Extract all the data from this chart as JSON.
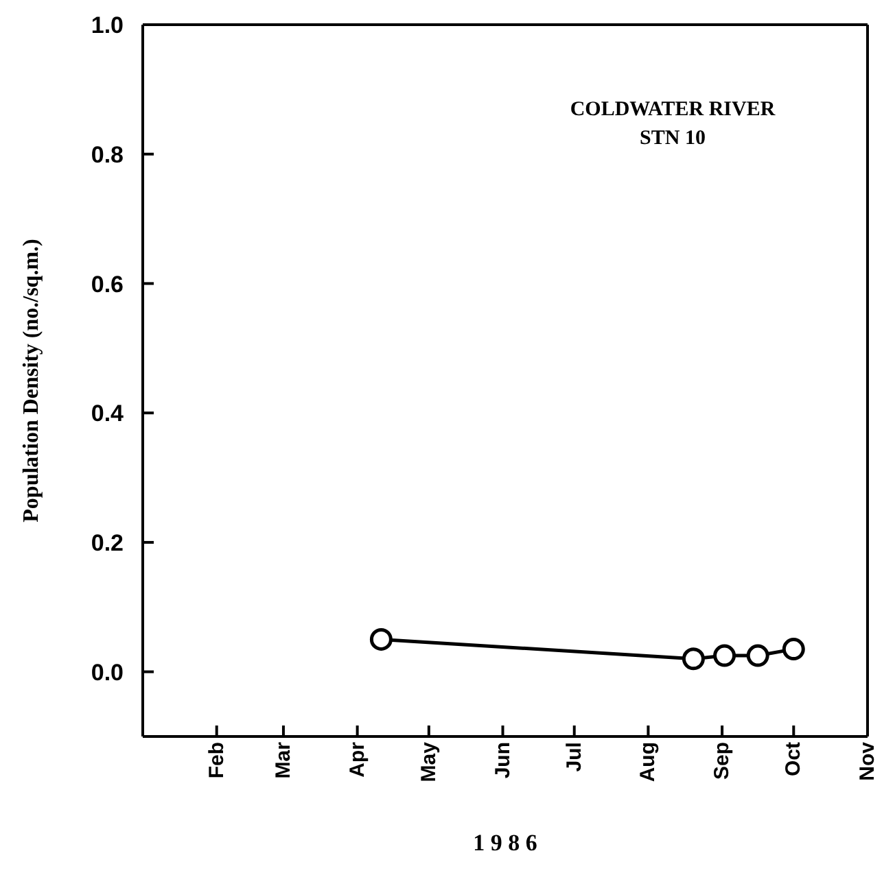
{
  "chart_data": {
    "type": "line",
    "xlabel": "1 9 8 6",
    "ylabel": "Population Density (no./sq.m.)",
    "annotations": [
      "COLDWATER RIVER\nSTN 10"
    ],
    "x": [
      "--04-11",
      "--08-20",
      "--09-02",
      "--09-16",
      "--10-01"
    ],
    "series": [
      {
        "color": "#000000",
        "values": [
          0.05,
          0.02,
          0.025,
          0.025,
          0.035
        ]
      }
    ],
    "xlim": [
      "--01-01",
      "--11-01"
    ],
    "xticks": [
      {
        "value": "--02-01",
        "label": "Feb"
      },
      {
        "value": "--03-01",
        "label": "Mar"
      },
      {
        "value": "--04-01",
        "label": "Apr"
      },
      {
        "value": "--05-01",
        "label": "May"
      },
      {
        "value": "--06-01",
        "label": "Jun"
      },
      {
        "value": "--07-01",
        "label": "Jul"
      },
      {
        "value": "--08-01",
        "label": "Aug"
      },
      {
        "value": "--09-01",
        "label": "Sep"
      },
      {
        "value": "--10-01",
        "label": "Oct"
      },
      {
        "value": "--11-01",
        "label": "Nov"
      }
    ],
    "ylim": [
      -0.1,
      1.0
    ],
    "yticks": [
      {
        "value": 0,
        "label": "0.0"
      },
      0.2,
      0.4,
      0.6,
      0.8,
      {
        "value": 1,
        "label": "1.0"
      }
    ],
    "grid": false,
    "legend": false,
    "marker": "circle",
    "line_style": "solid"
  }
}
